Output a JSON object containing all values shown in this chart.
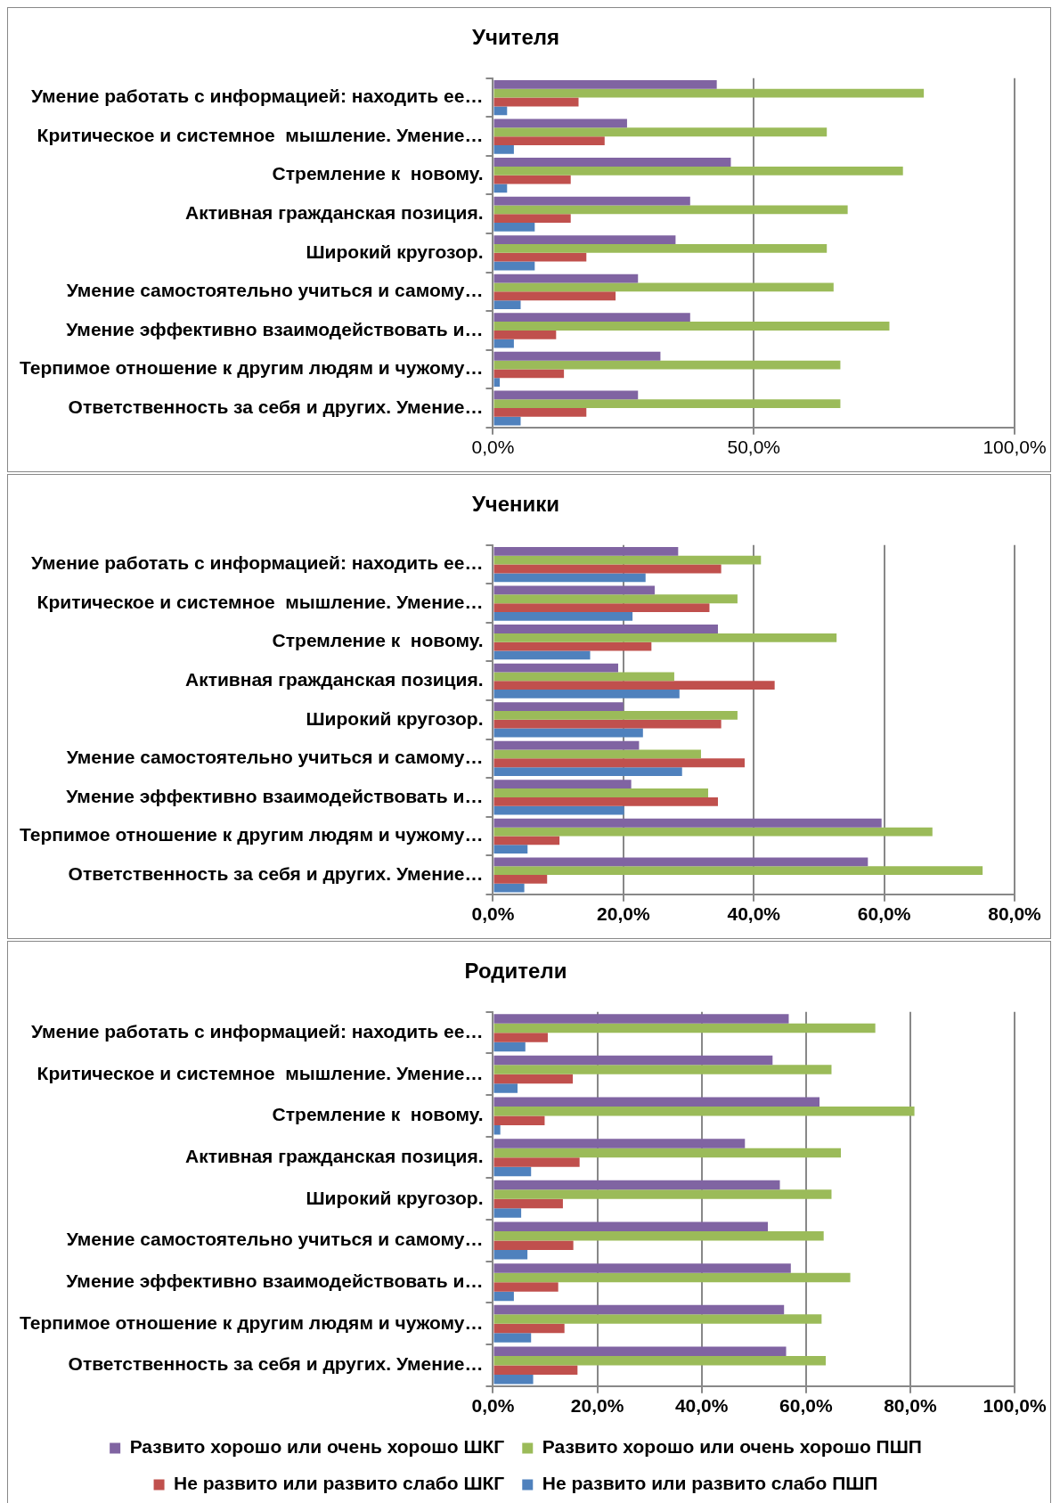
{
  "chart_data": [
    {
      "type": "bar",
      "orientation": "horizontal",
      "title": "Учителя",
      "categories": [
        "Умение работать с информацией: находить ее…",
        "Критическое и системное  мышление. Умение…",
        "Стремление к  новому.",
        "Активная гражданская позиция.",
        "Широкий кругозор.",
        "Умение самостоятельно учиться и самому…",
        "Умение эффективно взаимодействовать и…",
        "Терпимое отношение к другим людям и чужому…",
        "Ответственность за себя и других. Умение…"
      ],
      "series": [
        {
          "color": "#8064a2",
          "values": [
            42.9,
            25.7,
            45.6,
            37.8,
            35.0,
            27.8,
            37.8,
            32.1,
            27.8
          ]
        },
        {
          "color": "#9bbb59",
          "values": [
            82.6,
            64.0,
            78.6,
            68.0,
            64.0,
            65.3,
            76.0,
            66.6,
            66.6
          ]
        },
        {
          "color": "#c0504d",
          "values": [
            16.4,
            21.4,
            14.9,
            14.9,
            17.9,
            23.5,
            12.1,
            13.6,
            17.9
          ]
        },
        {
          "color": "#4f81bd",
          "values": [
            2.7,
            4.0,
            2.7,
            8.0,
            8.0,
            5.3,
            4.0,
            1.3,
            5.3
          ]
        }
      ],
      "xlim": [
        0,
        100
      ],
      "xticks": [
        {
          "value": 0,
          "label": "0,0%"
        },
        {
          "value": 50,
          "label": "50,0%"
        },
        {
          "value": 100,
          "label": "100,0%"
        }
      ],
      "grid": "x",
      "legend": false
    },
    {
      "type": "bar",
      "orientation": "horizontal",
      "title": "Ученики",
      "categories": [
        "Умение работать с информацией: находить ее…",
        "Критическое и системное  мышление. Умение…",
        "Стремление к  новому.",
        "Активная гражданская позиция.",
        "Широкий кругозор.",
        "Умение самостоятельно учиться и самому…",
        "Умение эффективно взаимодействовать и…",
        "Терпимое отношение к другим людям и чужому…",
        "Ответственность за себя и других. Умение…"
      ],
      "series": [
        {
          "color": "#8064a2",
          "values": [
            28.4,
            24.8,
            34.5,
            19.2,
            20.0,
            22.4,
            21.2,
            59.6,
            57.5
          ]
        },
        {
          "color": "#9bbb59",
          "values": [
            41.1,
            37.5,
            52.7,
            27.8,
            37.5,
            31.9,
            33.0,
            67.4,
            75.1
          ]
        },
        {
          "color": "#c0504d",
          "values": [
            35.0,
            33.2,
            24.3,
            43.2,
            35.0,
            38.6,
            34.5,
            10.2,
            8.3
          ]
        },
        {
          "color": "#4f81bd",
          "values": [
            23.4,
            21.4,
            14.9,
            28.6,
            23.0,
            29.0,
            20.1,
            5.3,
            4.8
          ]
        }
      ],
      "xlim": [
        0,
        80
      ],
      "xticks": [
        {
          "value": 0,
          "label": "0,0%"
        },
        {
          "value": 20,
          "label": "20,0%"
        },
        {
          "value": 40,
          "label": "40,0%"
        },
        {
          "value": 60,
          "label": "60,0%"
        },
        {
          "value": 80,
          "label": "80,0%"
        }
      ],
      "grid": "x",
      "legend": false
    },
    {
      "type": "bar",
      "orientation": "horizontal",
      "title": "Родители",
      "categories": [
        "Умение работать с информацией: находить ее…",
        "Критическое и системное  мышление. Умение…",
        "Стремление к  новому.",
        "Активная гражданская позиция.",
        "Широкий кругозор.",
        "Умение самостоятельно учиться и самому…",
        "Умение эффективно взаимодействовать и…",
        "Терпимое отношение к другим людям и чужому…",
        "Ответственность за себя и других. Умение…"
      ],
      "series": [
        {
          "name": "Развито хорошо или очень хорошо ШКГ",
          "color": "#8064a2",
          "values": [
            56.7,
            53.6,
            62.6,
            48.3,
            55.0,
            52.7,
            57.1,
            55.8,
            56.2
          ]
        },
        {
          "name": "Развито хорошо или очень хорошо ПШП",
          "color": "#9bbb59",
          "values": [
            73.3,
            64.9,
            80.8,
            66.7,
            64.9,
            63.4,
            68.5,
            63.0,
            63.8
          ]
        },
        {
          "name": "Не развито или развито слабо ШКГ",
          "color": "#c0504d",
          "values": [
            10.5,
            15.3,
            9.9,
            16.6,
            13.4,
            15.4,
            12.5,
            13.7,
            16.2
          ]
        },
        {
          "name": "Не развито или развито слабо ПШП",
          "color": "#4f81bd",
          "values": [
            6.2,
            4.7,
            1.4,
            7.3,
            5.4,
            6.6,
            4.0,
            7.3,
            7.7
          ]
        }
      ],
      "xlim": [
        0,
        100
      ],
      "xticks": [
        {
          "value": 0,
          "label": "0,0%"
        },
        {
          "value": 20,
          "label": "20,0%"
        },
        {
          "value": 40,
          "label": "40,0%"
        },
        {
          "value": 60,
          "label": "60,0%"
        },
        {
          "value": 80,
          "label": "80,0%"
        },
        {
          "value": 100,
          "label": "100,0%"
        }
      ],
      "grid": "x",
      "legend": "bottom"
    }
  ]
}
